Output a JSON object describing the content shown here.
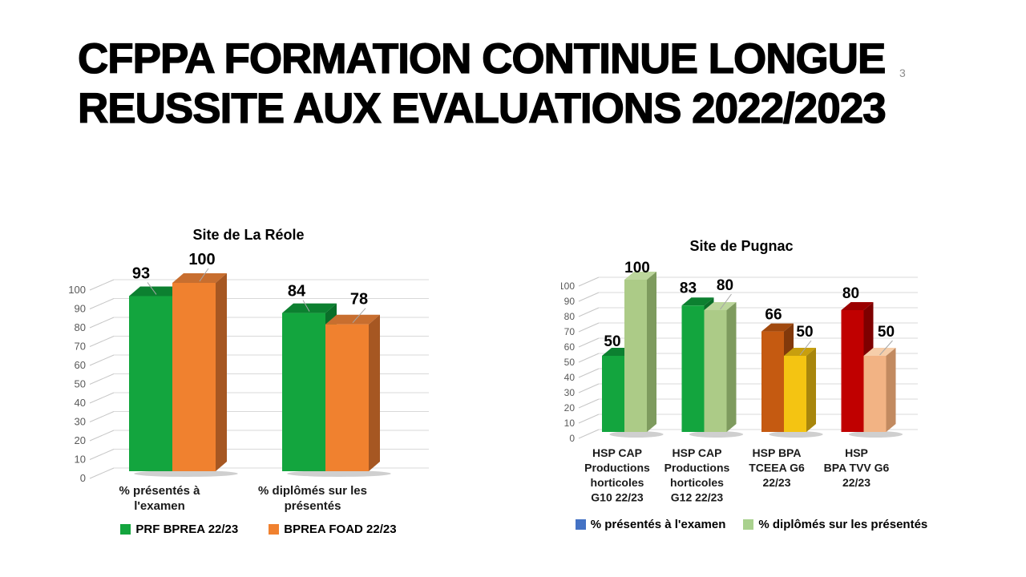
{
  "slide": {
    "title_lines": [
      "CFPPA FORMATION CONTINUE LONGUE",
      "REUSSITE AUX EVALUATIONS 2022/2023"
    ],
    "page_number": "3",
    "background_color": "#FFFFFF"
  },
  "chart_data": [
    {
      "type": "bar",
      "style": "3d-clustered-column",
      "title": "Site de La Réole",
      "categories": [
        "% présentés à l'examen",
        "% diplômés sur les présentés"
      ],
      "category_lines": [
        [
          "% présentés à",
          "l'examen"
        ],
        [
          "% diplômés sur les",
          "présentés"
        ]
      ],
      "ylim": [
        0,
        100
      ],
      "ytick_step": 10,
      "grid": true,
      "legend_position": "bottom",
      "series": [
        {
          "name": "PRF BPREA 22/23",
          "legend_color": "#13A53E",
          "values": [
            93,
            84
          ],
          "points": [
            {
              "value": 93,
              "front": "#13A53E",
              "top": "#0C8030",
              "side": "#0A6E29"
            },
            {
              "value": 84,
              "front": "#13A53E",
              "top": "#0C8030",
              "side": "#0A6E29"
            }
          ]
        },
        {
          "name": "BPREA FOAD 22/23",
          "legend_color": "#F0812F",
          "values": [
            100,
            78
          ],
          "points": [
            {
              "value": 100,
              "front": "#F0812F",
              "top": "#C86E2F",
              "side": "#A65722"
            },
            {
              "value": 78,
              "front": "#F0812F",
              "top": "#C86E2F",
              "side": "#A65722"
            }
          ]
        }
      ]
    },
    {
      "type": "bar",
      "style": "3d-clustered-column",
      "title": "Site de Pugnac",
      "categories": [
        "HSP CAP Productions horticoles G10 22/23",
        "HSP CAP Productions horticoles G12 22/23",
        "HSP BPA TCEEA G6 22/23",
        "HSP BPA TVV G6 22/23"
      ],
      "category_lines": [
        [
          "HSP CAP",
          "Productions",
          "horticoles",
          "G10 22/23"
        ],
        [
          "HSP CAP",
          "Productions",
          "horticoles",
          "G12 22/23"
        ],
        [
          "HSP BPA",
          "TCEEA G6",
          "22/23"
        ],
        [
          "HSP",
          "BPA TVV G6",
          "22/23"
        ]
      ],
      "ylim": [
        0,
        100
      ],
      "ytick_step": 10,
      "grid": true,
      "legend_position": "bottom",
      "series": [
        {
          "name": "% présentés à l'examen",
          "legend_color": "#4472C4",
          "values": [
            50,
            83,
            66,
            80
          ],
          "points": [
            {
              "value": 50,
              "front": "#13A53E",
              "top": "#0C8030",
              "side": "#0A6E29"
            },
            {
              "value": 83,
              "front": "#13A53E",
              "top": "#0C8030",
              "side": "#0A6E29"
            },
            {
              "value": 66,
              "front": "#C55A11",
              "top": "#A1490E",
              "side": "#82390B"
            },
            {
              "value": 80,
              "front": "#C00000",
              "top": "#9B0000",
              "side": "#7E0000"
            }
          ]
        },
        {
          "name": "% diplômés sur les présentés",
          "legend_color": "#A9D18E",
          "values": [
            100,
            80,
            50,
            50
          ],
          "points": [
            {
              "value": 100,
              "front": "#ACCB87",
              "top": "#BCD69C",
              "side": "#7E9B5E"
            },
            {
              "value": 80,
              "front": "#ACCB87",
              "top": "#BCD69C",
              "side": "#7E9B5E"
            },
            {
              "value": 50,
              "front": "#F4C412",
              "top": "#C89F0E",
              "side": "#A8860C"
            },
            {
              "value": 50,
              "front": "#F2B384",
              "top": "#F6CEAA",
              "side": "#C28A60"
            }
          ]
        }
      ]
    }
  ]
}
